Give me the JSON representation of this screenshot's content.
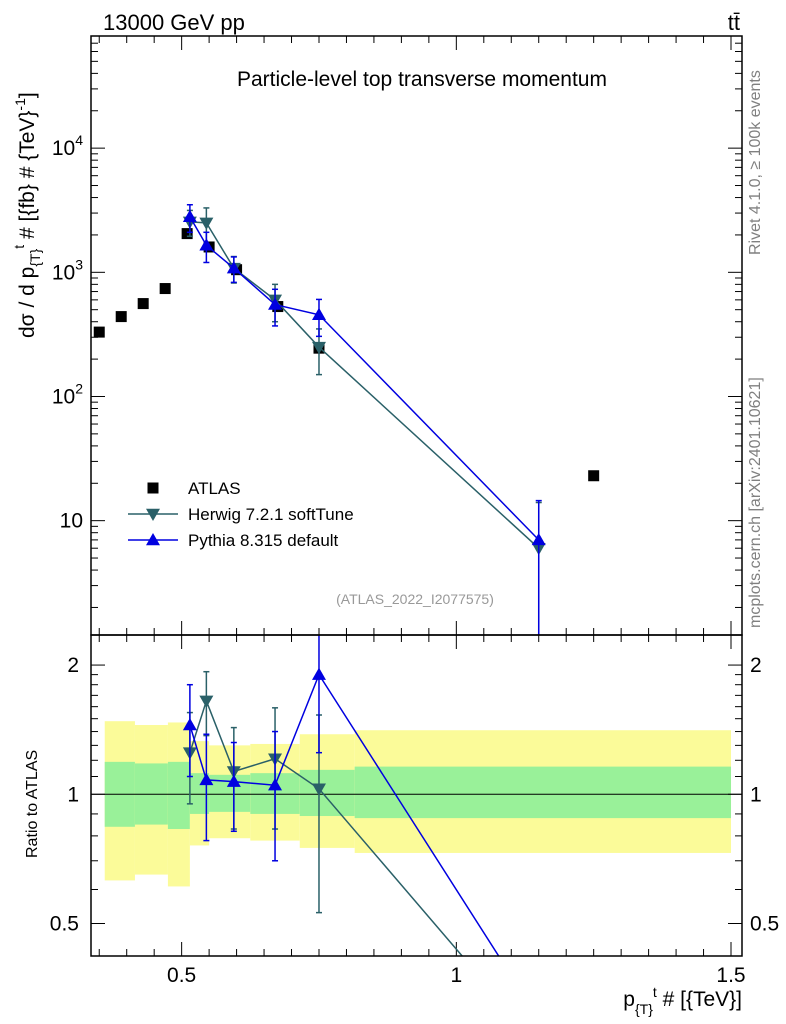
{
  "header": {
    "left": "13000 GeV pp",
    "right": "tt̄",
    "side_top": "Rivet 4.1.0, ≥ 100k events",
    "side_bottom": "mcplots.cern.ch [arXiv:2401.10621]"
  },
  "colors": {
    "atlas": "#000000",
    "herwig": "#2a6068",
    "pythia": "#0000e0",
    "band_inner": "#99f199",
    "band_outer": "#fbfb99"
  },
  "chart_data": [
    {
      "type": "scatter",
      "panel": "main",
      "title": "Particle-level top transverse momentum",
      "watermark": "(ATLAS_2022_I2077575)",
      "ylabel": "dσ / d p_{T}^t # [{fb} # {TeV}^-1]",
      "yscale": "log",
      "ylim": [
        1.2,
        80000
      ],
      "xlim": [
        0.335,
        1.52
      ],
      "y_ticks": [
        {
          "value": 10,
          "label": "10"
        },
        {
          "value": 100,
          "label": "10^2"
        },
        {
          "value": 1000,
          "label": "10^3"
        },
        {
          "value": 10000,
          "label": "10^4"
        }
      ],
      "legend_position": "bottom-left",
      "series": [
        {
          "name": "ATLAS",
          "marker": "square",
          "x": [
            0.35,
            0.39,
            0.43,
            0.47,
            0.51,
            0.55,
            0.6,
            0.675,
            0.75,
            1.25
          ],
          "y": [
            330,
            440,
            560,
            740,
            2050,
            1600,
            1050,
            530,
            245,
            23
          ]
        },
        {
          "name": "Herwig 7.2.1 softTune",
          "marker": "triangle-down",
          "x": [
            0.515,
            0.545,
            0.595,
            0.67,
            0.75,
            1.15
          ],
          "y": [
            2550,
            2500,
            1080,
            600,
            250,
            6
          ],
          "err": [
            600,
            800,
            260,
            200,
            100,
            8
          ]
        },
        {
          "name": "Pythia 8.315 default",
          "marker": "triangle-up",
          "x": [
            0.515,
            0.545,
            0.595,
            0.67,
            0.75,
            1.15
          ],
          "y": [
            2800,
            1650,
            1080,
            550,
            455,
            7
          ],
          "err": [
            700,
            450,
            250,
            180,
            150,
            7.5
          ]
        }
      ]
    },
    {
      "type": "line",
      "panel": "ratio",
      "ylabel": "Ratio to ATLAS",
      "xlabel": "p_{T}^t # [{TeV}]",
      "yscale": "log",
      "ylim": [
        0.42,
        2.35
      ],
      "xlim": [
        0.335,
        1.52
      ],
      "x_ticks": [
        {
          "value": 0.5,
          "label": "0.5"
        },
        {
          "value": 1.0,
          "label": "1"
        },
        {
          "value": 1.5,
          "label": "1.5"
        }
      ],
      "y_ticks": [
        {
          "value": 0.5,
          "label": "0.5"
        },
        {
          "value": 1,
          "label": "1"
        },
        {
          "value": 2,
          "label": "2"
        }
      ],
      "bands": [
        {
          "x0": 0.36,
          "x1": 0.415,
          "inner_lo": 0.84,
          "inner_hi": 1.19,
          "outer_lo": 0.63,
          "outer_hi": 1.48
        },
        {
          "x0": 0.415,
          "x1": 0.475,
          "inner_lo": 0.85,
          "inner_hi": 1.18,
          "outer_lo": 0.65,
          "outer_hi": 1.45
        },
        {
          "x0": 0.475,
          "x1": 0.515,
          "inner_lo": 0.83,
          "inner_hi": 1.19,
          "outer_lo": 0.61,
          "outer_hi": 1.47
        },
        {
          "x0": 0.515,
          "x1": 0.55,
          "inner_lo": 0.9,
          "inner_hi": 1.12,
          "outer_lo": 0.76,
          "outer_hi": 1.33
        },
        {
          "x0": 0.55,
          "x1": 0.625,
          "inner_lo": 0.91,
          "inner_hi": 1.11,
          "outer_lo": 0.79,
          "outer_hi": 1.3
        },
        {
          "x0": 0.625,
          "x1": 0.715,
          "inner_lo": 0.9,
          "inner_hi": 1.12,
          "outer_lo": 0.78,
          "outer_hi": 1.31
        },
        {
          "x0": 0.715,
          "x1": 0.815,
          "inner_lo": 0.89,
          "inner_hi": 1.14,
          "outer_lo": 0.75,
          "outer_hi": 1.38
        },
        {
          "x0": 0.815,
          "x1": 1.5,
          "inner_lo": 0.88,
          "inner_hi": 1.16,
          "outer_lo": 0.73,
          "outer_hi": 1.41
        }
      ],
      "series": [
        {
          "name": "Herwig 7.2.1 softTune",
          "marker": "triangle-down",
          "x": [
            0.515,
            0.545,
            0.595,
            0.67,
            0.75,
            1.15
          ],
          "y": [
            1.25,
            1.65,
            1.13,
            1.21,
            1.03,
            0.26
          ],
          "err": [
            0.3,
            0.28,
            0.3,
            0.38,
            0.5,
            0
          ]
        },
        {
          "name": "Pythia 8.315 default",
          "marker": "triangle-up",
          "x": [
            0.515,
            0.545,
            0.595,
            0.67,
            0.75,
            1.15
          ],
          "y": [
            1.45,
            1.08,
            1.07,
            1.05,
            1.9,
            0.3
          ],
          "err": [
            0.35,
            0.3,
            0.25,
            0.35,
            0.65,
            0
          ]
        }
      ]
    }
  ]
}
